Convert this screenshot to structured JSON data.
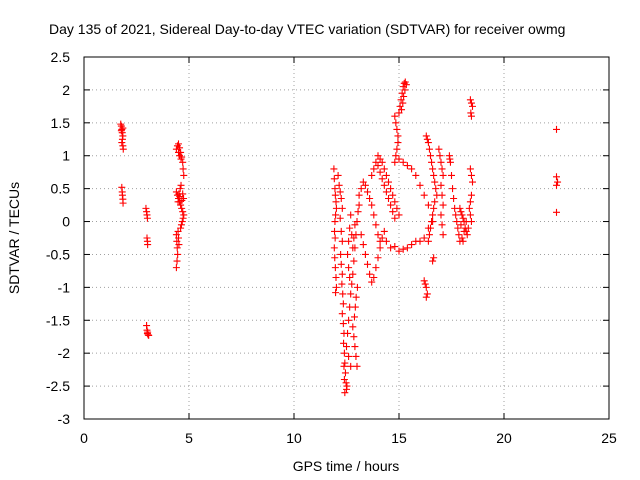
{
  "chart_data": {
    "type": "scatter",
    "title": "Day 135 of 2021, Sidereal Day-to-day VTEC variation (SDTVAR) for receiver owmg",
    "xlabel": "GPS time / hours",
    "ylabel": "SDTVAR / TECUs",
    "xlim": [
      0,
      25
    ],
    "ylim": [
      -3,
      2.5
    ],
    "xticks": [
      "0",
      "5",
      "10",
      "15",
      "20",
      "25"
    ],
    "yticks": [
      "-3",
      "-2.5",
      "-2",
      "-1.5",
      "-1",
      "-0.5",
      "0",
      "0.5",
      "1",
      "1.5",
      "2",
      "2.5"
    ],
    "grid": true,
    "marker": "+",
    "color": "#ff0000",
    "series": [
      {
        "name": "SDTVAR",
        "points": [
          [
            1.75,
            1.48
          ],
          [
            1.78,
            1.45
          ],
          [
            1.8,
            1.4
          ],
          [
            1.82,
            1.35
          ],
          [
            1.85,
            1.3
          ],
          [
            1.83,
            1.25
          ],
          [
            1.8,
            1.2
          ],
          [
            1.85,
            1.15
          ],
          [
            1.87,
            1.1
          ],
          [
            1.78,
            1.38
          ],
          [
            1.85,
            1.42
          ],
          [
            1.8,
            0.52
          ],
          [
            1.82,
            0.45
          ],
          [
            1.83,
            0.4
          ],
          [
            1.85,
            0.34
          ],
          [
            1.86,
            0.28
          ],
          [
            2.95,
            0.2
          ],
          [
            2.98,
            0.15
          ],
          [
            3.0,
            0.1
          ],
          [
            3.02,
            0.05
          ],
          [
            3.0,
            -0.25
          ],
          [
            3.02,
            -0.3
          ],
          [
            3.03,
            -0.35
          ],
          [
            2.98,
            -1.58
          ],
          [
            3.0,
            -1.65
          ],
          [
            3.02,
            -1.7
          ],
          [
            3.05,
            -1.72
          ],
          [
            3.08,
            -1.73
          ],
          [
            3.03,
            -1.68
          ],
          [
            4.4,
            1.1
          ],
          [
            4.45,
            1.15
          ],
          [
            4.5,
            1.18
          ],
          [
            4.55,
            1.12
          ],
          [
            4.6,
            1.05
          ],
          [
            4.65,
            0.98
          ],
          [
            4.7,
            0.9
          ],
          [
            4.72,
            0.8
          ],
          [
            4.75,
            0.7
          ],
          [
            4.5,
            1.05
          ],
          [
            4.55,
            1.0
          ],
          [
            4.62,
            0.95
          ],
          [
            4.4,
            0.45
          ],
          [
            4.45,
            0.4
          ],
          [
            4.5,
            0.35
          ],
          [
            4.55,
            0.3
          ],
          [
            4.6,
            0.25
          ],
          [
            4.65,
            0.2
          ],
          [
            4.7,
            0.15
          ],
          [
            4.75,
            0.1
          ],
          [
            4.72,
            0.05
          ],
          [
            4.68,
            0.0
          ],
          [
            4.62,
            0.55
          ],
          [
            4.58,
            0.5
          ],
          [
            4.52,
            0.42
          ],
          [
            4.48,
            0.3
          ],
          [
            4.56,
            0.38
          ],
          [
            4.66,
            0.32
          ],
          [
            4.7,
            0.42
          ],
          [
            4.74,
            0.35
          ],
          [
            4.64,
            -0.05
          ],
          [
            4.6,
            -0.1
          ],
          [
            4.4,
            -0.2
          ],
          [
            4.42,
            -0.3
          ],
          [
            4.44,
            -0.4
          ],
          [
            4.46,
            -0.5
          ],
          [
            4.43,
            -0.6
          ],
          [
            4.4,
            -0.7
          ],
          [
            4.48,
            -0.15
          ],
          [
            4.5,
            -0.25
          ],
          [
            4.52,
            -0.35
          ],
          [
            11.9,
            0.8
          ],
          [
            11.92,
            0.65
          ],
          [
            11.95,
            0.5
          ],
          [
            11.97,
            0.4
          ],
          [
            12.0,
            0.3
          ],
          [
            12.02,
            0.2
          ],
          [
            11.98,
            0.1
          ],
          [
            11.95,
            0.0
          ],
          [
            11.93,
            -0.15
          ],
          [
            11.96,
            -0.25
          ],
          [
            11.92,
            -0.4
          ],
          [
            11.94,
            -0.55
          ],
          [
            11.97,
            -0.7
          ],
          [
            12.0,
            -0.85
          ],
          [
            12.02,
            -1.0
          ],
          [
            11.98,
            -1.08
          ],
          [
            12.1,
            0.7
          ],
          [
            12.15,
            0.55
          ],
          [
            12.2,
            0.45
          ],
          [
            12.25,
            0.35
          ],
          [
            12.3,
            0.2
          ],
          [
            12.2,
            0.05
          ],
          [
            12.25,
            -0.15
          ],
          [
            12.3,
            -0.3
          ],
          [
            12.22,
            -0.5
          ],
          [
            12.25,
            -0.65
          ],
          [
            12.3,
            -0.8
          ],
          [
            12.28,
            -0.95
          ],
          [
            12.32,
            -1.1
          ],
          [
            12.35,
            -1.25
          ],
          [
            12.3,
            -1.4
          ],
          [
            12.35,
            -1.55
          ],
          [
            12.38,
            -1.7
          ],
          [
            12.36,
            -1.85
          ],
          [
            12.4,
            -2.0
          ],
          [
            12.42,
            -2.15
          ],
          [
            12.45,
            -2.3
          ],
          [
            12.48,
            -2.45
          ],
          [
            12.5,
            -2.55
          ],
          [
            12.52,
            -2.5
          ],
          [
            12.42,
            -2.6
          ],
          [
            12.4,
            -2.4
          ],
          [
            12.38,
            -2.2
          ],
          [
            12.5,
            -1.9
          ],
          [
            12.55,
            -1.7
          ],
          [
            12.6,
            -1.5
          ],
          [
            12.65,
            -1.3
          ],
          [
            12.7,
            -1.1
          ],
          [
            12.75,
            -0.95
          ],
          [
            12.8,
            -0.8
          ],
          [
            12.85,
            -0.6
          ],
          [
            12.9,
            -0.4
          ],
          [
            12.95,
            -0.2
          ],
          [
            13.0,
            0.0
          ],
          [
            13.05,
            0.15
          ],
          [
            13.1,
            0.25
          ],
          [
            12.6,
            -2.05
          ],
          [
            12.7,
            -2.2
          ],
          [
            12.8,
            -1.6
          ],
          [
            12.85,
            -1.75
          ],
          [
            12.9,
            -1.9
          ],
          [
            12.95,
            -2.05
          ],
          [
            13.0,
            -2.2
          ],
          [
            12.88,
            -1.45
          ],
          [
            12.92,
            -1.3
          ],
          [
            12.96,
            -1.15
          ],
          [
            13.02,
            -1.0
          ],
          [
            12.55,
            -0.5
          ],
          [
            12.6,
            -0.3
          ],
          [
            12.65,
            -0.1
          ],
          [
            12.7,
            0.1
          ],
          [
            12.75,
            -0.2
          ],
          [
            12.8,
            -0.4
          ],
          [
            12.85,
            -0.25
          ],
          [
            12.9,
            -0.05
          ],
          [
            12.6,
            -0.7
          ],
          [
            12.65,
            -0.85
          ],
          [
            13.1,
            0.4
          ],
          [
            13.2,
            0.5
          ],
          [
            13.3,
            0.6
          ],
          [
            13.4,
            0.55
          ],
          [
            13.5,
            0.45
          ],
          [
            13.6,
            0.35
          ],
          [
            13.7,
            0.25
          ],
          [
            13.8,
            0.1
          ],
          [
            13.9,
            -0.05
          ],
          [
            14.0,
            -0.2
          ],
          [
            14.1,
            -0.3
          ],
          [
            14.2,
            -0.25
          ],
          [
            14.3,
            -0.15
          ],
          [
            13.2,
            -0.2
          ],
          [
            13.3,
            -0.35
          ],
          [
            13.4,
            -0.5
          ],
          [
            13.5,
            -0.65
          ],
          [
            13.6,
            -0.8
          ],
          [
            13.7,
            -0.92
          ],
          [
            13.8,
            -0.85
          ],
          [
            13.9,
            -0.7
          ],
          [
            14.0,
            -0.55
          ],
          [
            14.1,
            -0.4
          ],
          [
            13.7,
            0.7
          ],
          [
            13.8,
            0.8
          ],
          [
            13.9,
            0.9
          ],
          [
            14.0,
            0.85
          ],
          [
            14.1,
            0.75
          ],
          [
            14.2,
            0.65
          ],
          [
            14.3,
            0.55
          ],
          [
            14.4,
            0.45
          ],
          [
            14.5,
            0.35
          ],
          [
            14.6,
            0.25
          ],
          [
            14.7,
            0.15
          ],
          [
            14.8,
            0.05
          ],
          [
            14.0,
            1.0
          ],
          [
            14.1,
            0.95
          ],
          [
            14.2,
            0.9
          ],
          [
            14.3,
            0.8
          ],
          [
            14.4,
            0.7
          ],
          [
            14.5,
            0.6
          ],
          [
            14.6,
            0.5
          ],
          [
            14.7,
            0.4
          ],
          [
            14.8,
            0.3
          ],
          [
            14.9,
            0.2
          ],
          [
            15.0,
            0.1
          ],
          [
            14.4,
            -0.3
          ],
          [
            14.6,
            -0.4
          ],
          [
            14.8,
            -0.38
          ],
          [
            15.0,
            -0.45
          ],
          [
            15.2,
            -0.42
          ],
          [
            15.4,
            -0.4
          ],
          [
            15.6,
            -0.35
          ],
          [
            15.8,
            -0.3
          ],
          [
            16.0,
            -0.3
          ],
          [
            16.2,
            -0.25
          ],
          [
            16.4,
            -0.1
          ],
          [
            16.6,
            0.0
          ],
          [
            14.8,
            1.6
          ],
          [
            14.85,
            1.5
          ],
          [
            14.9,
            1.4
          ],
          [
            14.95,
            1.3
          ],
          [
            15.0,
            1.65
          ],
          [
            15.05,
            1.75
          ],
          [
            15.1,
            1.85
          ],
          [
            15.15,
            1.95
          ],
          [
            15.2,
            2.05
          ],
          [
            15.25,
            2.1
          ],
          [
            15.3,
            2.12
          ],
          [
            15.35,
            2.08
          ],
          [
            15.28,
            2.0
          ],
          [
            15.22,
            1.9
          ],
          [
            15.18,
            1.8
          ],
          [
            15.12,
            1.7
          ],
          [
            14.8,
            0.9
          ],
          [
            14.85,
            1.0
          ],
          [
            14.9,
            1.1
          ],
          [
            14.95,
            1.2
          ],
          [
            15.0,
            0.95
          ],
          [
            15.2,
            0.9
          ],
          [
            15.4,
            0.85
          ],
          [
            15.6,
            0.8
          ],
          [
            15.8,
            0.7
          ],
          [
            16.0,
            0.55
          ],
          [
            16.2,
            0.4
          ],
          [
            16.4,
            0.25
          ],
          [
            16.3,
            1.3
          ],
          [
            16.35,
            1.25
          ],
          [
            16.4,
            1.2
          ],
          [
            16.45,
            1.1
          ],
          [
            16.5,
            1.0
          ],
          [
            16.55,
            0.9
          ],
          [
            16.6,
            0.8
          ],
          [
            16.65,
            0.7
          ],
          [
            16.7,
            0.6
          ],
          [
            16.75,
            0.5
          ],
          [
            16.8,
            0.4
          ],
          [
            16.7,
            0.3
          ],
          [
            16.65,
            0.2
          ],
          [
            16.6,
            0.1
          ],
          [
            16.55,
            0.0
          ],
          [
            16.5,
            -0.1
          ],
          [
            16.45,
            -0.2
          ],
          [
            16.4,
            -0.3
          ],
          [
            16.2,
            -0.9
          ],
          [
            16.25,
            -0.95
          ],
          [
            16.3,
            -1.0
          ],
          [
            16.35,
            -1.1
          ],
          [
            16.3,
            -1.15
          ],
          [
            16.6,
            -0.6
          ],
          [
            16.65,
            -0.55
          ],
          [
            16.9,
            1.1
          ],
          [
            16.95,
            1.0
          ],
          [
            17.0,
            0.9
          ],
          [
            17.05,
            0.8
          ],
          [
            17.1,
            0.7
          ],
          [
            17.0,
            0.55
          ],
          [
            17.05,
            0.4
          ],
          [
            17.1,
            0.25
          ],
          [
            17.0,
            0.1
          ],
          [
            17.05,
            -0.05
          ],
          [
            17.1,
            -0.2
          ],
          [
            17.4,
            1.0
          ],
          [
            17.42,
            0.95
          ],
          [
            17.45,
            0.9
          ],
          [
            17.5,
            0.7
          ],
          [
            17.55,
            0.5
          ],
          [
            17.6,
            0.35
          ],
          [
            17.65,
            0.2
          ],
          [
            17.7,
            0.1
          ],
          [
            17.75,
            0.0
          ],
          [
            17.8,
            -0.1
          ],
          [
            17.85,
            -0.2
          ],
          [
            17.9,
            -0.3
          ],
          [
            17.9,
            0.2
          ],
          [
            17.95,
            0.15
          ],
          [
            18.0,
            0.1
          ],
          [
            18.05,
            0.05
          ],
          [
            18.1,
            0.0
          ],
          [
            18.15,
            -0.1
          ],
          [
            18.2,
            -0.15
          ],
          [
            18.25,
            -0.2
          ],
          [
            18.3,
            -0.1
          ],
          [
            18.0,
            -0.25
          ],
          [
            18.05,
            -0.3
          ],
          [
            17.95,
            -0.05
          ],
          [
            18.1,
            -0.15
          ],
          [
            18.2,
            0.0
          ],
          [
            18.4,
            0.8
          ],
          [
            18.45,
            0.7
          ],
          [
            18.5,
            0.6
          ],
          [
            18.45,
            0.4
          ],
          [
            18.4,
            0.3
          ],
          [
            18.35,
            0.2
          ],
          [
            18.4,
            0.1
          ],
          [
            18.45,
            0.0
          ],
          [
            18.4,
            1.85
          ],
          [
            18.45,
            1.8
          ],
          [
            18.5,
            1.75
          ],
          [
            18.42,
            1.65
          ],
          [
            18.45,
            1.6
          ],
          [
            22.5,
            1.4
          ],
          [
            22.5,
            0.68
          ],
          [
            22.55,
            0.6
          ],
          [
            22.5,
            0.55
          ],
          [
            22.5,
            0.14
          ]
        ]
      }
    ]
  }
}
